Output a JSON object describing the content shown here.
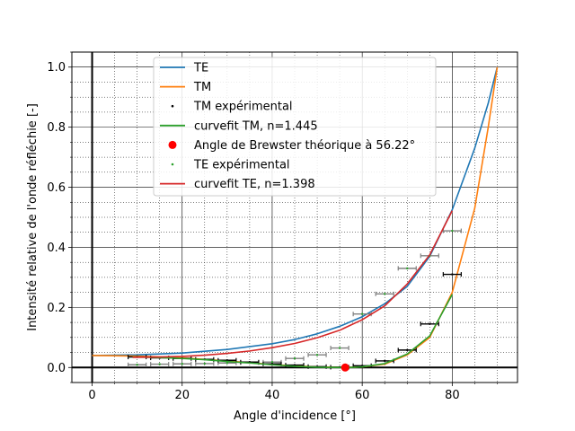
{
  "chart_data": {
    "type": "line",
    "title": "",
    "xlabel": "Angle d'incidence [°]",
    "ylabel": "Intensité relative de l'onde réfléchie [-]",
    "xlim": [
      -4.5,
      94.5
    ],
    "ylim": [
      -0.05,
      1.05
    ],
    "xticks": [
      0,
      20,
      40,
      60,
      80
    ],
    "xtick_labels": [
      "0",
      "20",
      "40",
      "60",
      "80"
    ],
    "yticks": [
      0.0,
      0.2,
      0.4,
      0.6,
      0.8,
      1.0
    ],
    "ytick_labels": [
      "0.0",
      "0.2",
      "0.4",
      "0.6",
      "0.8",
      "1.0"
    ],
    "minor_tick_step_x": 5,
    "minor_tick_step_y": 0.05,
    "grid": "major and minor",
    "legend_position": "upper-left",
    "colors": {
      "te": "#1f77b4",
      "tm": "#ff7f0e",
      "tm_fit": "#2ca02c",
      "te_fit": "#d62728",
      "brewster": "#ff0000",
      "tm_exp": "#000000",
      "te_exp": "#2ca02c",
      "te_exp_err": "#808080"
    },
    "series": [
      {
        "name": "TE",
        "kind": "line",
        "x": [
          0,
          10,
          20,
          30,
          40,
          45,
          50,
          55,
          60,
          65,
          70,
          75,
          80,
          85,
          88,
          90
        ],
        "y": [
          0.04,
          0.042,
          0.048,
          0.06,
          0.079,
          0.093,
          0.112,
          0.137,
          0.169,
          0.212,
          0.27,
          0.37,
          0.525,
          0.73,
          0.88,
          1.0
        ]
      },
      {
        "name": "TM",
        "kind": "line",
        "x": [
          0,
          10,
          20,
          30,
          40,
          45,
          50,
          55,
          56.22,
          60,
          65,
          70,
          75,
          80,
          85,
          88,
          90
        ],
        "y": [
          0.04,
          0.038,
          0.032,
          0.022,
          0.01,
          0.005,
          0.002,
          0.0003,
          0.0,
          0.002,
          0.011,
          0.042,
          0.1,
          0.25,
          0.53,
          0.8,
          1.0
        ]
      },
      {
        "name": "TM expérimental",
        "kind": "points",
        "x": [
          10,
          15,
          20,
          25,
          30,
          35,
          40,
          45,
          50,
          55,
          60,
          65,
          70,
          75,
          80
        ],
        "y": [
          0.035,
          0.032,
          0.03,
          0.027,
          0.024,
          0.018,
          0.012,
          0.008,
          0.003,
          0.001,
          0.006,
          0.022,
          0.058,
          0.145,
          0.31
        ],
        "xerr": 2
      },
      {
        "name": "curvefit TM, n=1.445",
        "kind": "line",
        "x": [
          9,
          15,
          20,
          25,
          30,
          35,
          40,
          45,
          50,
          55,
          57,
          60,
          65,
          70,
          75,
          80
        ],
        "y": [
          0.035,
          0.033,
          0.03,
          0.026,
          0.02,
          0.015,
          0.009,
          0.004,
          0.001,
          0.0,
          0.0,
          0.002,
          0.013,
          0.045,
          0.105,
          0.243
        ]
      },
      {
        "name": "Angle de Brewster théorique à 56.22°",
        "kind": "marker",
        "x": [
          56.22
        ],
        "y": [
          0.0
        ]
      },
      {
        "name": "TE expérimental",
        "kind": "points",
        "x": [
          10,
          15,
          20,
          25,
          30,
          35,
          40,
          45,
          50,
          55,
          60,
          65,
          70,
          75,
          80
        ],
        "y": [
          0.009,
          0.011,
          0.012,
          0.013,
          0.015,
          0.016,
          0.018,
          0.03,
          0.042,
          0.065,
          0.178,
          0.245,
          0.33,
          0.372,
          0.455
        ],
        "xerr": 2
      },
      {
        "name": "curvefit TE, n=1.398",
        "kind": "line",
        "x": [
          9,
          15,
          20,
          25,
          30,
          35,
          40,
          45,
          50,
          55,
          60,
          65,
          70,
          75,
          80
        ],
        "y": [
          0.034,
          0.035,
          0.037,
          0.041,
          0.047,
          0.055,
          0.066,
          0.08,
          0.099,
          0.124,
          0.159,
          0.205,
          0.278,
          0.375,
          0.522
        ]
      }
    ]
  }
}
